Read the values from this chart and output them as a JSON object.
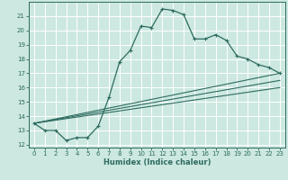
{
  "xlabel": "Humidex (Indice chaleur)",
  "bg_color": "#cce8e0",
  "line_color": "#2e6b60",
  "grid_color": "#ffffff",
  "xlim": [
    -0.5,
    23.5
  ],
  "ylim": [
    11.8,
    22.0
  ],
  "yticks": [
    12,
    13,
    14,
    15,
    16,
    17,
    18,
    19,
    20,
    21
  ],
  "xticks": [
    0,
    1,
    2,
    3,
    4,
    5,
    6,
    7,
    8,
    9,
    10,
    11,
    12,
    13,
    14,
    15,
    16,
    17,
    18,
    19,
    20,
    21,
    22,
    23
  ],
  "curve1_x": [
    0,
    1,
    2,
    3,
    4,
    5,
    6,
    7,
    8,
    9,
    10,
    11,
    12,
    13,
    14,
    15,
    16,
    17,
    18,
    19,
    20,
    21,
    22,
    23
  ],
  "curve1_y": [
    13.5,
    13.0,
    13.0,
    12.3,
    12.5,
    12.5,
    13.3,
    15.3,
    17.8,
    18.6,
    20.3,
    20.2,
    21.5,
    21.4,
    21.1,
    19.4,
    19.4,
    19.7,
    19.3,
    18.2,
    18.0,
    17.6,
    17.4,
    17.0
  ],
  "line1_x": [
    0,
    23
  ],
  "line1_y": [
    13.5,
    17.0
  ],
  "line2_x": [
    0,
    23
  ],
  "line2_y": [
    13.5,
    16.5
  ],
  "line3_x": [
    0,
    23
  ],
  "line3_y": [
    13.5,
    16.0
  ]
}
